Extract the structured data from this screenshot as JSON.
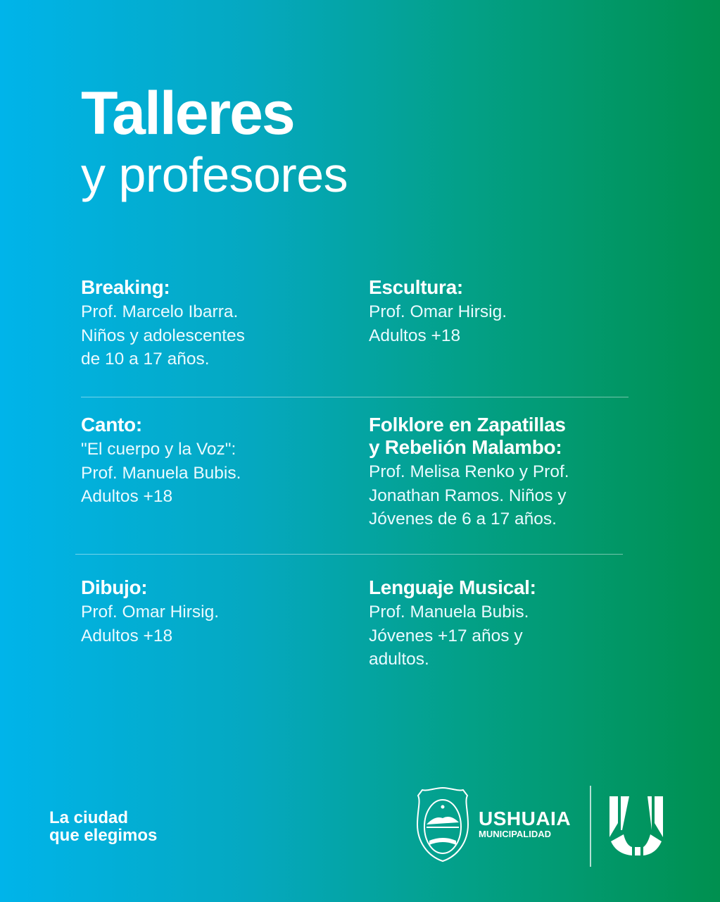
{
  "header": {
    "title": "Talleres",
    "subtitle": "y profesores"
  },
  "workshops": [
    {
      "name": "Breaking:",
      "lines": [
        "Prof. Marcelo Ibarra.",
        "Niños y adolescentes",
        "de 10 a 17 años."
      ]
    },
    {
      "name": "Escultura:",
      "lines": [
        "Prof. Omar Hirsig.",
        "Adultos +18"
      ]
    },
    {
      "name": "Canto:",
      "lines": [
        "\"El cuerpo y la Voz\":",
        "Prof. Manuela Bubis.",
        "Adultos +18"
      ]
    },
    {
      "name_lines": [
        "Folklore en Zapatillas",
        "y Rebelión Malambo:"
      ],
      "lines": [
        "Prof. Melisa Renko y Prof.",
        "Jonathan Ramos. Niños y",
        "Jóvenes de 6 a 17 años."
      ]
    },
    {
      "name": "Dibujo:",
      "lines": [
        "Prof. Omar Hirsig.",
        "Adultos +18"
      ]
    },
    {
      "name": "Lenguaje Musical:",
      "lines": [
        "Prof. Manuela Bubis.",
        "Jóvenes +17 años y",
        "adultos."
      ]
    }
  ],
  "footer": {
    "slogan": [
      "La ciudad",
      "que elegimos"
    ],
    "brand_name": "USHUAIA",
    "brand_sub": "MUNICIPALIDAD",
    "icons": [
      "coat-of-arms-icon",
      "u-logo-icon"
    ]
  },
  "colors": {
    "gradient_start": "#00b4ea",
    "gradient_end": "#00904f",
    "text": "#ffffff"
  }
}
